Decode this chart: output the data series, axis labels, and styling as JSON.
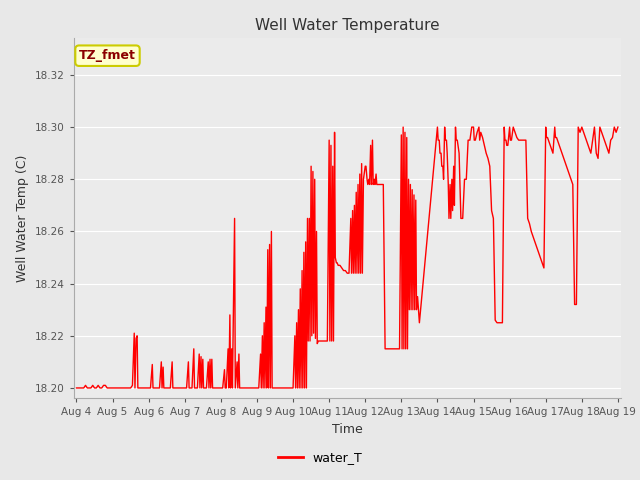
{
  "title": "Well Water Temperature",
  "xlabel": "Time",
  "ylabel": "Well Water Temp (C)",
  "legend_label": "water_T",
  "annotation_text": "TZ_fmet",
  "annotation_color": "#8B0000",
  "annotation_bg": "#FFFFCC",
  "annotation_border": "#CCCC00",
  "line_color": "#FF0000",
  "line_width": 1.0,
  "ylim": [
    18.196,
    18.334
  ],
  "yticks": [
    18.2,
    18.22,
    18.24,
    18.26,
    18.28,
    18.3,
    18.32
  ],
  "xlim": [
    3.92,
    19.08
  ],
  "bg_color": "#E8E8E8",
  "plot_bg": "#EBEBEB",
  "grid_color": "#FFFFFF",
  "xtick_labels": [
    "Aug 4",
    "Aug 5",
    "Aug 6",
    "Aug 7",
    "Aug 8",
    "Aug 9",
    "Aug 10",
    "Aug 11",
    "Aug 12",
    "Aug 13",
    "Aug 14",
    "Aug 15",
    "Aug 16",
    "Aug 17",
    "Aug 18",
    "Aug 19"
  ],
  "xtick_positions": [
    4,
    5,
    6,
    7,
    8,
    9,
    10,
    11,
    12,
    13,
    14,
    15,
    16,
    17,
    18,
    19
  ],
  "time_series": [
    [
      4.0,
      18.2
    ],
    [
      4.05,
      18.2
    ],
    [
      4.1,
      18.2
    ],
    [
      4.15,
      18.2
    ],
    [
      4.2,
      18.2
    ],
    [
      4.25,
      18.201
    ],
    [
      4.3,
      18.2
    ],
    [
      4.35,
      18.2
    ],
    [
      4.4,
      18.2
    ],
    [
      4.45,
      18.201
    ],
    [
      4.5,
      18.2
    ],
    [
      4.55,
      18.2
    ],
    [
      4.6,
      18.201
    ],
    [
      4.65,
      18.2
    ],
    [
      4.7,
      18.2
    ],
    [
      4.75,
      18.201
    ],
    [
      4.8,
      18.201
    ],
    [
      4.85,
      18.2
    ],
    [
      4.9,
      18.2
    ],
    [
      4.95,
      18.2
    ],
    [
      5.0,
      18.2
    ],
    [
      5.05,
      18.2
    ],
    [
      5.1,
      18.2
    ],
    [
      5.15,
      18.2
    ],
    [
      5.2,
      18.2
    ],
    [
      5.25,
      18.2
    ],
    [
      5.3,
      18.2
    ],
    [
      5.35,
      18.2
    ],
    [
      5.4,
      18.2
    ],
    [
      5.45,
      18.2
    ],
    [
      5.5,
      18.2
    ],
    [
      5.55,
      18.201
    ],
    [
      5.6,
      18.221
    ],
    [
      5.62,
      18.2
    ],
    [
      5.65,
      18.219
    ],
    [
      5.68,
      18.22
    ],
    [
      5.7,
      18.2
    ],
    [
      5.75,
      18.2
    ],
    [
      5.8,
      18.2
    ],
    [
      5.85,
      18.2
    ],
    [
      5.9,
      18.2
    ],
    [
      5.95,
      18.2
    ],
    [
      6.0,
      18.2
    ],
    [
      6.05,
      18.2
    ],
    [
      6.1,
      18.209
    ],
    [
      6.12,
      18.2
    ],
    [
      6.15,
      18.2
    ],
    [
      6.2,
      18.2
    ],
    [
      6.25,
      18.2
    ],
    [
      6.3,
      18.2
    ],
    [
      6.35,
      18.21
    ],
    [
      6.37,
      18.2
    ],
    [
      6.4,
      18.208
    ],
    [
      6.42,
      18.2
    ],
    [
      6.45,
      18.2
    ],
    [
      6.5,
      18.2
    ],
    [
      6.55,
      18.2
    ],
    [
      6.6,
      18.2
    ],
    [
      6.65,
      18.21
    ],
    [
      6.67,
      18.2
    ],
    [
      6.7,
      18.2
    ],
    [
      6.75,
      18.2
    ],
    [
      6.8,
      18.2
    ],
    [
      6.85,
      18.2
    ],
    [
      6.9,
      18.2
    ],
    [
      6.95,
      18.2
    ],
    [
      7.0,
      18.2
    ],
    [
      7.05,
      18.2
    ],
    [
      7.1,
      18.21
    ],
    [
      7.12,
      18.2
    ],
    [
      7.15,
      18.2
    ],
    [
      7.2,
      18.2
    ],
    [
      7.25,
      18.215
    ],
    [
      7.27,
      18.2
    ],
    [
      7.3,
      18.2
    ],
    [
      7.35,
      18.2
    ],
    [
      7.4,
      18.213
    ],
    [
      7.42,
      18.2
    ],
    [
      7.45,
      18.212
    ],
    [
      7.47,
      18.2
    ],
    [
      7.5,
      18.211
    ],
    [
      7.52,
      18.2
    ],
    [
      7.55,
      18.2
    ],
    [
      7.6,
      18.2
    ],
    [
      7.65,
      18.21
    ],
    [
      7.67,
      18.2
    ],
    [
      7.7,
      18.211
    ],
    [
      7.72,
      18.2
    ],
    [
      7.75,
      18.211
    ],
    [
      7.77,
      18.2
    ],
    [
      7.8,
      18.2
    ],
    [
      7.85,
      18.2
    ],
    [
      7.9,
      18.2
    ],
    [
      7.95,
      18.2
    ],
    [
      8.0,
      18.2
    ],
    [
      8.05,
      18.2
    ],
    [
      8.1,
      18.207
    ],
    [
      8.12,
      18.2
    ],
    [
      8.15,
      18.2
    ],
    [
      8.2,
      18.215
    ],
    [
      8.22,
      18.2
    ],
    [
      8.25,
      18.228
    ],
    [
      8.27,
      18.2
    ],
    [
      8.3,
      18.215
    ],
    [
      8.32,
      18.2
    ],
    [
      8.38,
      18.265
    ],
    [
      8.4,
      18.2
    ],
    [
      8.45,
      18.21
    ],
    [
      8.47,
      18.2
    ],
    [
      8.5,
      18.213
    ],
    [
      8.52,
      18.2
    ],
    [
      8.55,
      18.2
    ],
    [
      8.6,
      18.2
    ],
    [
      8.65,
      18.2
    ],
    [
      8.7,
      18.2
    ],
    [
      8.75,
      18.2
    ],
    [
      8.8,
      18.2
    ],
    [
      8.85,
      18.2
    ],
    [
      8.9,
      18.2
    ],
    [
      8.95,
      18.2
    ],
    [
      9.0,
      18.2
    ],
    [
      9.05,
      18.2
    ],
    [
      9.1,
      18.213
    ],
    [
      9.12,
      18.2
    ],
    [
      9.15,
      18.22
    ],
    [
      9.17,
      18.2
    ],
    [
      9.2,
      18.225
    ],
    [
      9.22,
      18.2
    ],
    [
      9.25,
      18.231
    ],
    [
      9.27,
      18.2
    ],
    [
      9.3,
      18.253
    ],
    [
      9.32,
      18.2
    ],
    [
      9.35,
      18.255
    ],
    [
      9.37,
      18.2
    ],
    [
      9.4,
      18.26
    ],
    [
      9.42,
      18.2
    ],
    [
      9.45,
      18.2
    ],
    [
      9.5,
      18.2
    ],
    [
      9.55,
      18.2
    ],
    [
      9.6,
      18.2
    ],
    [
      9.65,
      18.2
    ],
    [
      9.7,
      18.2
    ],
    [
      9.75,
      18.2
    ],
    [
      9.8,
      18.2
    ],
    [
      9.85,
      18.2
    ],
    [
      9.9,
      18.2
    ],
    [
      9.95,
      18.2
    ],
    [
      10.0,
      18.2
    ],
    [
      10.05,
      18.22
    ],
    [
      10.07,
      18.2
    ],
    [
      10.1,
      18.225
    ],
    [
      10.12,
      18.2
    ],
    [
      10.15,
      18.23
    ],
    [
      10.17,
      18.2
    ],
    [
      10.2,
      18.238
    ],
    [
      10.22,
      18.2
    ],
    [
      10.25,
      18.245
    ],
    [
      10.27,
      18.2
    ],
    [
      10.3,
      18.252
    ],
    [
      10.32,
      18.2
    ],
    [
      10.35,
      18.256
    ],
    [
      10.37,
      18.2
    ],
    [
      10.4,
      18.265
    ],
    [
      10.42,
      18.218
    ],
    [
      10.45,
      18.265
    ],
    [
      10.47,
      18.218
    ],
    [
      10.5,
      18.285
    ],
    [
      10.52,
      18.22
    ],
    [
      10.55,
      18.283
    ],
    [
      10.57,
      18.221
    ],
    [
      10.6,
      18.28
    ],
    [
      10.62,
      18.219
    ],
    [
      10.65,
      18.26
    ],
    [
      10.67,
      18.217
    ],
    [
      10.7,
      18.218
    ],
    [
      10.75,
      18.218
    ],
    [
      10.8,
      18.218
    ],
    [
      10.85,
      18.218
    ],
    [
      10.9,
      18.218
    ],
    [
      10.95,
      18.218
    ],
    [
      11.0,
      18.295
    ],
    [
      11.02,
      18.218
    ],
    [
      11.05,
      18.293
    ],
    [
      11.07,
      18.218
    ],
    [
      11.1,
      18.285
    ],
    [
      11.12,
      18.218
    ],
    [
      11.15,
      18.298
    ],
    [
      11.17,
      18.25
    ],
    [
      11.2,
      18.248
    ],
    [
      11.22,
      18.248
    ],
    [
      11.25,
      18.247
    ],
    [
      11.3,
      18.247
    ],
    [
      11.35,
      18.246
    ],
    [
      11.4,
      18.245
    ],
    [
      11.45,
      18.245
    ],
    [
      11.5,
      18.244
    ],
    [
      11.55,
      18.244
    ],
    [
      11.6,
      18.265
    ],
    [
      11.62,
      18.244
    ],
    [
      11.65,
      18.268
    ],
    [
      11.67,
      18.244
    ],
    [
      11.7,
      18.27
    ],
    [
      11.72,
      18.244
    ],
    [
      11.75,
      18.275
    ],
    [
      11.77,
      18.244
    ],
    [
      11.8,
      18.278
    ],
    [
      11.82,
      18.244
    ],
    [
      11.85,
      18.282
    ],
    [
      11.87,
      18.244
    ],
    [
      11.9,
      18.286
    ],
    [
      11.92,
      18.244
    ],
    [
      11.95,
      18.28
    ],
    [
      12.0,
      18.285
    ],
    [
      12.02,
      18.285
    ],
    [
      12.05,
      18.28
    ],
    [
      12.07,
      18.278
    ],
    [
      12.1,
      18.28
    ],
    [
      12.12,
      18.278
    ],
    [
      12.15,
      18.293
    ],
    [
      12.17,
      18.278
    ],
    [
      12.2,
      18.295
    ],
    [
      12.22,
      18.278
    ],
    [
      12.25,
      18.28
    ],
    [
      12.27,
      18.278
    ],
    [
      12.3,
      18.282
    ],
    [
      12.32,
      18.278
    ],
    [
      12.35,
      18.278
    ],
    [
      12.4,
      18.278
    ],
    [
      12.45,
      18.278
    ],
    [
      12.5,
      18.278
    ],
    [
      12.55,
      18.215
    ],
    [
      12.57,
      18.215
    ],
    [
      12.6,
      18.215
    ],
    [
      12.65,
      18.215
    ],
    [
      12.7,
      18.215
    ],
    [
      12.75,
      18.215
    ],
    [
      12.8,
      18.215
    ],
    [
      12.85,
      18.215
    ],
    [
      12.9,
      18.215
    ],
    [
      12.95,
      18.215
    ],
    [
      13.0,
      18.297
    ],
    [
      13.02,
      18.215
    ],
    [
      13.05,
      18.3
    ],
    [
      13.07,
      18.215
    ],
    [
      13.1,
      18.298
    ],
    [
      13.12,
      18.215
    ],
    [
      13.15,
      18.296
    ],
    [
      13.17,
      18.215
    ],
    [
      13.2,
      18.28
    ],
    [
      13.22,
      18.23
    ],
    [
      13.25,
      18.278
    ],
    [
      13.27,
      18.23
    ],
    [
      13.3,
      18.276
    ],
    [
      13.32,
      18.23
    ],
    [
      13.35,
      18.274
    ],
    [
      13.37,
      18.23
    ],
    [
      13.4,
      18.272
    ],
    [
      13.42,
      18.23
    ],
    [
      13.45,
      18.235
    ],
    [
      13.5,
      18.225
    ],
    [
      14.0,
      18.3
    ],
    [
      14.02,
      18.295
    ],
    [
      14.05,
      18.295
    ],
    [
      14.07,
      18.29
    ],
    [
      14.1,
      18.29
    ],
    [
      14.12,
      18.285
    ],
    [
      14.15,
      18.285
    ],
    [
      14.17,
      18.28
    ],
    [
      14.2,
      18.3
    ],
    [
      14.22,
      18.295
    ],
    [
      14.25,
      18.295
    ],
    [
      14.27,
      18.29
    ],
    [
      14.3,
      18.278
    ],
    [
      14.32,
      18.265
    ],
    [
      14.35,
      18.278
    ],
    [
      14.37,
      18.265
    ],
    [
      14.4,
      18.28
    ],
    [
      14.42,
      18.268
    ],
    [
      14.45,
      18.285
    ],
    [
      14.47,
      18.27
    ],
    [
      14.5,
      18.3
    ],
    [
      14.52,
      18.295
    ],
    [
      14.55,
      18.295
    ],
    [
      14.6,
      18.29
    ],
    [
      14.65,
      18.265
    ],
    [
      14.7,
      18.265
    ],
    [
      14.75,
      18.28
    ],
    [
      14.8,
      18.28
    ],
    [
      14.85,
      18.295
    ],
    [
      14.9,
      18.295
    ],
    [
      14.95,
      18.3
    ],
    [
      15.0,
      18.3
    ],
    [
      15.02,
      18.295
    ],
    [
      15.05,
      18.295
    ],
    [
      15.1,
      18.298
    ],
    [
      15.15,
      18.3
    ],
    [
      15.17,
      18.295
    ],
    [
      15.2,
      18.298
    ],
    [
      15.25,
      18.296
    ],
    [
      15.3,
      18.293
    ],
    [
      15.35,
      18.29
    ],
    [
      15.4,
      18.288
    ],
    [
      15.45,
      18.285
    ],
    [
      15.5,
      18.268
    ],
    [
      15.55,
      18.265
    ],
    [
      15.6,
      18.226
    ],
    [
      15.65,
      18.225
    ],
    [
      15.7,
      18.225
    ],
    [
      15.75,
      18.225
    ],
    [
      15.8,
      18.225
    ],
    [
      15.85,
      18.3
    ],
    [
      15.87,
      18.295
    ],
    [
      15.9,
      18.295
    ],
    [
      15.92,
      18.293
    ],
    [
      15.95,
      18.293
    ],
    [
      16.0,
      18.3
    ],
    [
      16.02,
      18.295
    ],
    [
      16.05,
      18.295
    ],
    [
      16.1,
      18.3
    ],
    [
      16.15,
      18.298
    ],
    [
      16.2,
      18.296
    ],
    [
      16.25,
      18.295
    ],
    [
      16.3,
      18.295
    ],
    [
      16.35,
      18.295
    ],
    [
      16.4,
      18.295
    ],
    [
      16.45,
      18.295
    ],
    [
      16.5,
      18.265
    ],
    [
      16.55,
      18.263
    ],
    [
      16.6,
      18.26
    ],
    [
      16.65,
      18.258
    ],
    [
      16.7,
      18.256
    ],
    [
      16.75,
      18.254
    ],
    [
      16.8,
      18.252
    ],
    [
      16.85,
      18.25
    ],
    [
      16.9,
      18.248
    ],
    [
      16.95,
      18.246
    ],
    [
      17.0,
      18.3
    ],
    [
      17.02,
      18.296
    ],
    [
      17.05,
      18.296
    ],
    [
      17.1,
      18.294
    ],
    [
      17.15,
      18.292
    ],
    [
      17.2,
      18.29
    ],
    [
      17.25,
      18.3
    ],
    [
      17.27,
      18.296
    ],
    [
      17.3,
      18.296
    ],
    [
      17.35,
      18.294
    ],
    [
      17.4,
      18.292
    ],
    [
      17.45,
      18.29
    ],
    [
      17.5,
      18.288
    ],
    [
      17.55,
      18.286
    ],
    [
      17.6,
      18.284
    ],
    [
      17.65,
      18.282
    ],
    [
      17.7,
      18.28
    ],
    [
      17.75,
      18.278
    ],
    [
      17.8,
      18.232
    ],
    [
      17.85,
      18.232
    ],
    [
      17.9,
      18.3
    ],
    [
      17.95,
      18.298
    ],
    [
      18.0,
      18.3
    ],
    [
      18.05,
      18.298
    ],
    [
      18.1,
      18.296
    ],
    [
      18.15,
      18.294
    ],
    [
      18.2,
      18.292
    ],
    [
      18.25,
      18.29
    ],
    [
      18.3,
      18.295
    ],
    [
      18.35,
      18.3
    ],
    [
      18.4,
      18.29
    ],
    [
      18.45,
      18.288
    ],
    [
      18.5,
      18.3
    ],
    [
      18.55,
      18.298
    ],
    [
      18.6,
      18.296
    ],
    [
      18.65,
      18.294
    ],
    [
      18.7,
      18.292
    ],
    [
      18.75,
      18.29
    ],
    [
      18.8,
      18.295
    ],
    [
      18.85,
      18.296
    ],
    [
      18.9,
      18.3
    ],
    [
      18.95,
      18.298
    ],
    [
      19.0,
      18.3
    ]
  ]
}
